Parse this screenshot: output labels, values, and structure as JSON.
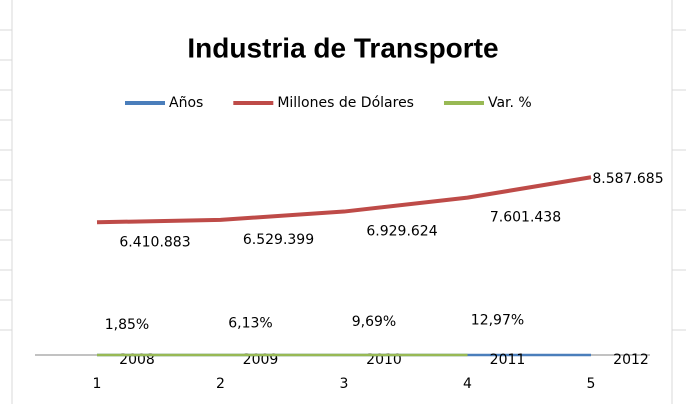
{
  "chart_data": {
    "type": "line",
    "title": "Industria de Transporte",
    "categories": [
      "1",
      "2",
      "3",
      "4",
      "5"
    ],
    "series": [
      {
        "name": "Años",
        "color": "#4a7ebb",
        "values": [
          2008,
          2009,
          2010,
          2011,
          2012
        ]
      },
      {
        "name": "Millones de Dólares",
        "color": "#be4b48",
        "values": [
          6410883,
          6529399,
          6929624,
          7601438,
          8587685
        ],
        "value_labels": [
          "6.410.883",
          "6.529.399",
          "6.929.624",
          "7.601.438",
          "8.587.685"
        ]
      },
      {
        "name": "Var. %",
        "color": "#98b954",
        "values": [
          1.85,
          6.13,
          9.69,
          12.97,
          null
        ],
        "value_labels": [
          "1,85%",
          "6,13%",
          "9,69%",
          "12,97%",
          null
        ]
      }
    ],
    "ylim": [
      0,
      10000000
    ],
    "legend": "top"
  }
}
